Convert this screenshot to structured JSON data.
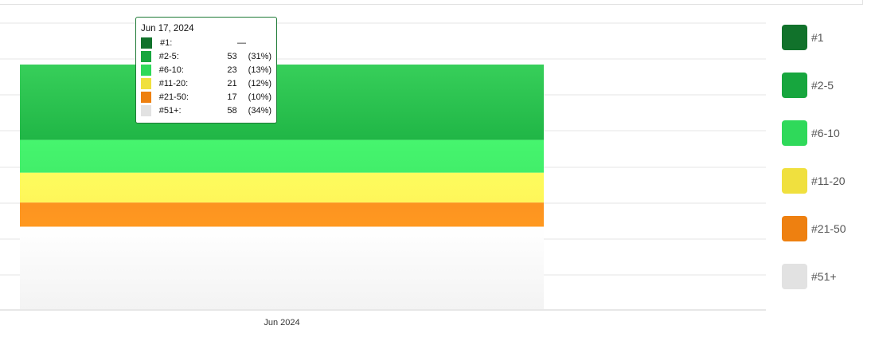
{
  "chart_data": {
    "type": "area",
    "stacked": true,
    "x_ticks": [
      "Jun 2024"
    ],
    "series": [
      {
        "name": "#1",
        "color": "#11722b",
        "value": null
      },
      {
        "name": "#2-5",
        "color": "#17a63e",
        "value": 53
      },
      {
        "name": "#6-10",
        "color": "#2fd95a",
        "value": 23
      },
      {
        "name": "#11-20",
        "color": "#f0e03e",
        "value": 21
      },
      {
        "name": "#21-50",
        "color": "#ee8010",
        "value": 17
      },
      {
        "name": "#51+",
        "color": "#e2e2e2",
        "value": 58
      }
    ],
    "grid": true,
    "legend_position": "right"
  },
  "tooltip": {
    "date": "Jun 17, 2024",
    "rows": [
      {
        "label": "#1:",
        "value": "—",
        "pct": ""
      },
      {
        "label": "#2-5:",
        "value": "53",
        "pct": "(31%)"
      },
      {
        "label": "#6-10:",
        "value": "23",
        "pct": "(13%)"
      },
      {
        "label": "#11-20:",
        "value": "21",
        "pct": "(12%)"
      },
      {
        "label": "#21-50:",
        "value": "17",
        "pct": "(10%)"
      },
      {
        "label": "#51+:",
        "value": "58",
        "pct": "(34%)"
      }
    ]
  }
}
